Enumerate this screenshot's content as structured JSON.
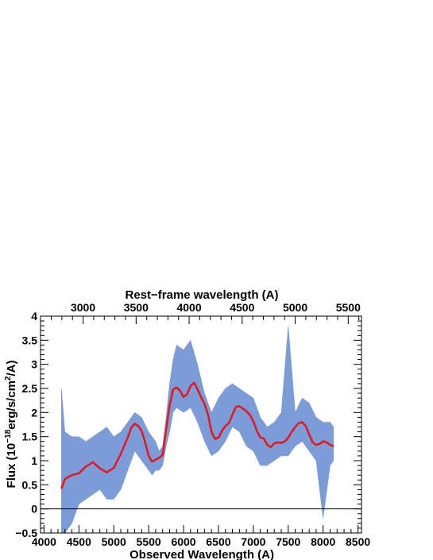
{
  "chart_data": {
    "type": "area",
    "xlabel": "Observed Wavelength (A)",
    "top_xlabel": "Rest−frame wavelength (A)",
    "ylabel_parts": {
      "pre": "Flux (10",
      "exp1": "−18",
      "mid": "erg/s/cm",
      "exp2": "2",
      "post": "/A)"
    },
    "xlim": [
      3950,
      8550
    ],
    "ylim": [
      -0.5,
      4
    ],
    "x_ticks": [
      "4000",
      "4500",
      "5000",
      "5500",
      "6000",
      "6500",
      "7000",
      "7500",
      "8000",
      "8500"
    ],
    "y_ticks": [
      "−0.5",
      "0",
      "0.5",
      "1",
      "1.5",
      "2",
      "2.5",
      "3",
      "3.5",
      "4"
    ],
    "top_ticks": [
      "3000",
      "3500",
      "4000",
      "4500",
      "5000",
      "5500"
    ],
    "redshift": 0.52,
    "zero_line": 0,
    "grid": false,
    "series": [
      {
        "type": "area",
        "color": "#7b9cd6",
        "x": [
          4250,
          4300,
          4400,
          4500,
          4600,
          4700,
          4800,
          4900,
          5000,
          5100,
          5200,
          5300,
          5400,
          5500,
          5550,
          5600,
          5650,
          5700,
          5750,
          5800,
          5850,
          5900,
          6000,
          6100,
          6200,
          6300,
          6400,
          6500,
          6600,
          6700,
          6800,
          6900,
          7000,
          7100,
          7200,
          7300,
          7400,
          7500,
          7600,
          7700,
          7800,
          7900,
          8000,
          8100,
          8150
        ],
        "low": [
          -0.5,
          -0.5,
          -0.3,
          0.1,
          0.2,
          0.3,
          0.4,
          0.2,
          0.2,
          0.4,
          0.8,
          1.2,
          1.0,
          0.8,
          0.7,
          0.8,
          0.8,
          0.9,
          1.3,
          1.6,
          2.0,
          2.1,
          2.0,
          2.1,
          1.8,
          1.4,
          1.1,
          1.2,
          1.4,
          1.7,
          1.6,
          1.3,
          1.2,
          0.9,
          0.9,
          1.0,
          1.1,
          1.1,
          1.3,
          1.4,
          1.2,
          1.0,
          -0.2,
          0.9,
          1.0
        ],
        "high": [
          2.5,
          1.6,
          1.5,
          1.5,
          1.4,
          1.5,
          1.6,
          1.7,
          1.5,
          1.6,
          1.8,
          2.0,
          1.9,
          1.6,
          1.5,
          1.4,
          1.2,
          1.3,
          1.9,
          2.6,
          3.1,
          3.4,
          3.3,
          3.5,
          3.0,
          2.4,
          2.0,
          2.3,
          2.5,
          2.6,
          2.5,
          2.4,
          2.3,
          1.9,
          1.7,
          1.8,
          2.0,
          3.8,
          2.0,
          2.3,
          2.2,
          1.9,
          1.8,
          1.8,
          1.7
        ]
      },
      {
        "type": "line",
        "color": "#e8141c",
        "x": [
          4250,
          4300,
          4400,
          4500,
          4600,
          4700,
          4800,
          4900,
          5000,
          5100,
          5200,
          5250,
          5300,
          5350,
          5400,
          5450,
          5500,
          5550,
          5600,
          5650,
          5700,
          5750,
          5800,
          5850,
          5900,
          5950,
          6000,
          6050,
          6100,
          6150,
          6200,
          6250,
          6300,
          6350,
          6400,
          6450,
          6500,
          6550,
          6600,
          6650,
          6700,
          6750,
          6800,
          6850,
          6900,
          6950,
          7000,
          7050,
          7100,
          7150,
          7200,
          7250,
          7300,
          7350,
          7400,
          7450,
          7500,
          7550,
          7600,
          7650,
          7700,
          7750,
          7800,
          7850,
          7900,
          7950,
          8000,
          8050,
          8100,
          8150
        ],
        "y": [
          0.42,
          0.62,
          0.7,
          0.74,
          0.88,
          0.97,
          0.84,
          0.76,
          0.85,
          1.14,
          1.48,
          1.68,
          1.77,
          1.72,
          1.62,
          1.38,
          1.1,
          0.98,
          1.02,
          1.06,
          1.12,
          1.65,
          2.15,
          2.48,
          2.52,
          2.45,
          2.32,
          2.38,
          2.55,
          2.62,
          2.48,
          2.32,
          2.18,
          1.96,
          1.6,
          1.45,
          1.48,
          1.62,
          1.72,
          1.78,
          1.95,
          2.12,
          2.13,
          2.08,
          2.03,
          1.95,
          1.82,
          1.62,
          1.48,
          1.46,
          1.33,
          1.28,
          1.36,
          1.38,
          1.37,
          1.4,
          1.48,
          1.6,
          1.7,
          1.78,
          1.8,
          1.72,
          1.55,
          1.38,
          1.33,
          1.35,
          1.4,
          1.38,
          1.33,
          1.3
        ]
      }
    ]
  }
}
